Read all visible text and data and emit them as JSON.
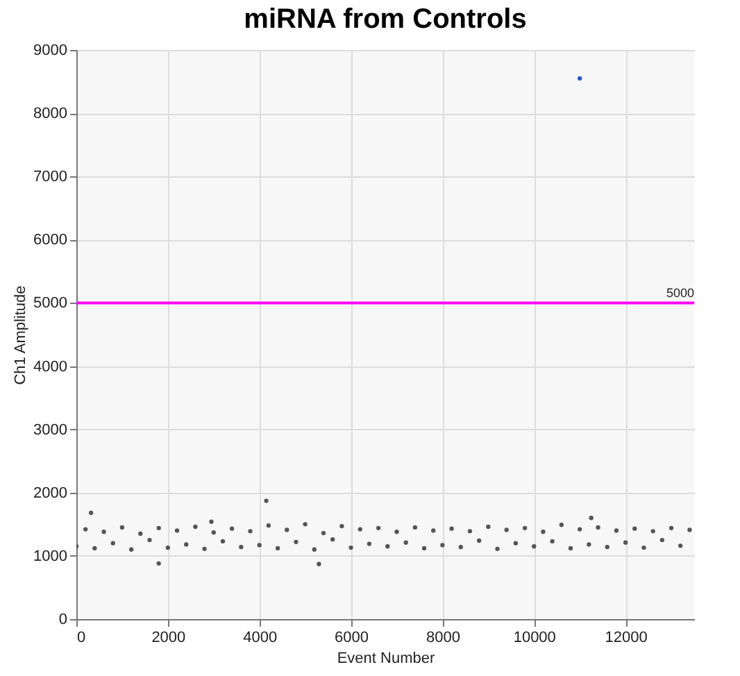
{
  "chart_data": {
    "type": "scatter",
    "title": "miRNA from Controls",
    "xlabel": "Event Number",
    "ylabel": "Ch1 Amplitude",
    "xlim": [
      0,
      13500
    ],
    "xticks": [
      0,
      2000,
      4000,
      6000,
      8000,
      10000,
      12000
    ],
    "ylim": [
      0,
      9000
    ],
    "yticks": [
      0,
      1000,
      2000,
      3000,
      4000,
      5000,
      6000,
      7000,
      8000,
      9000
    ],
    "grid": true,
    "marker": "circle",
    "ref_lines": [
      {
        "axis": "y",
        "value": 5000,
        "label": "5000",
        "color": "#ff00ff"
      }
    ],
    "series": [
      {
        "color": "#555555",
        "x": [
          0,
          200,
          400,
          600,
          800,
          1000,
          1200,
          1400,
          1600,
          1800,
          2000,
          2200,
          2400,
          2600,
          2800,
          3000,
          3200,
          3400,
          3600,
          3800,
          4000,
          4200,
          4400,
          4600,
          4800,
          5000,
          5200,
          5400,
          5600,
          5800,
          6000,
          6200,
          6400,
          6600,
          6800,
          7000,
          7200,
          7400,
          7600,
          7800,
          8000,
          8200,
          8400,
          8600,
          8800,
          9000,
          9200,
          9400,
          9600,
          9800,
          10000,
          10200,
          10400,
          10600,
          10800,
          11000,
          11200,
          11400,
          11600,
          11800,
          12000,
          12200,
          12400,
          12600,
          12800,
          13000,
          13200,
          13400,
          320,
          4150,
          1800,
          5300,
          11250,
          2950
        ],
        "values": [
          1150,
          1420,
          1120,
          1380,
          1200,
          1450,
          1100,
          1350,
          1250,
          1440,
          1130,
          1400,
          1180,
          1460,
          1110,
          1370,
          1230,
          1430,
          1140,
          1390,
          1170,
          1480,
          1120,
          1410,
          1220,
          1500,
          1100,
          1360,
          1260,
          1470,
          1130,
          1420,
          1190,
          1440,
          1150,
          1380,
          1210,
          1450,
          1120,
          1400,
          1170,
          1430,
          1140,
          1390,
          1240,
          1460,
          1110,
          1410,
          1200,
          1440,
          1150,
          1380,
          1230,
          1490,
          1120,
          1420,
          1180,
          1450,
          1140,
          1400,
          1210,
          1430,
          1130,
          1390,
          1250,
          1440,
          1160,
          1410,
          1680,
          1870,
          880,
          870,
          1600,
          1540
        ]
      },
      {
        "color": "#3355cc",
        "x": [
          11000
        ],
        "values": [
          8550
        ]
      }
    ]
  }
}
